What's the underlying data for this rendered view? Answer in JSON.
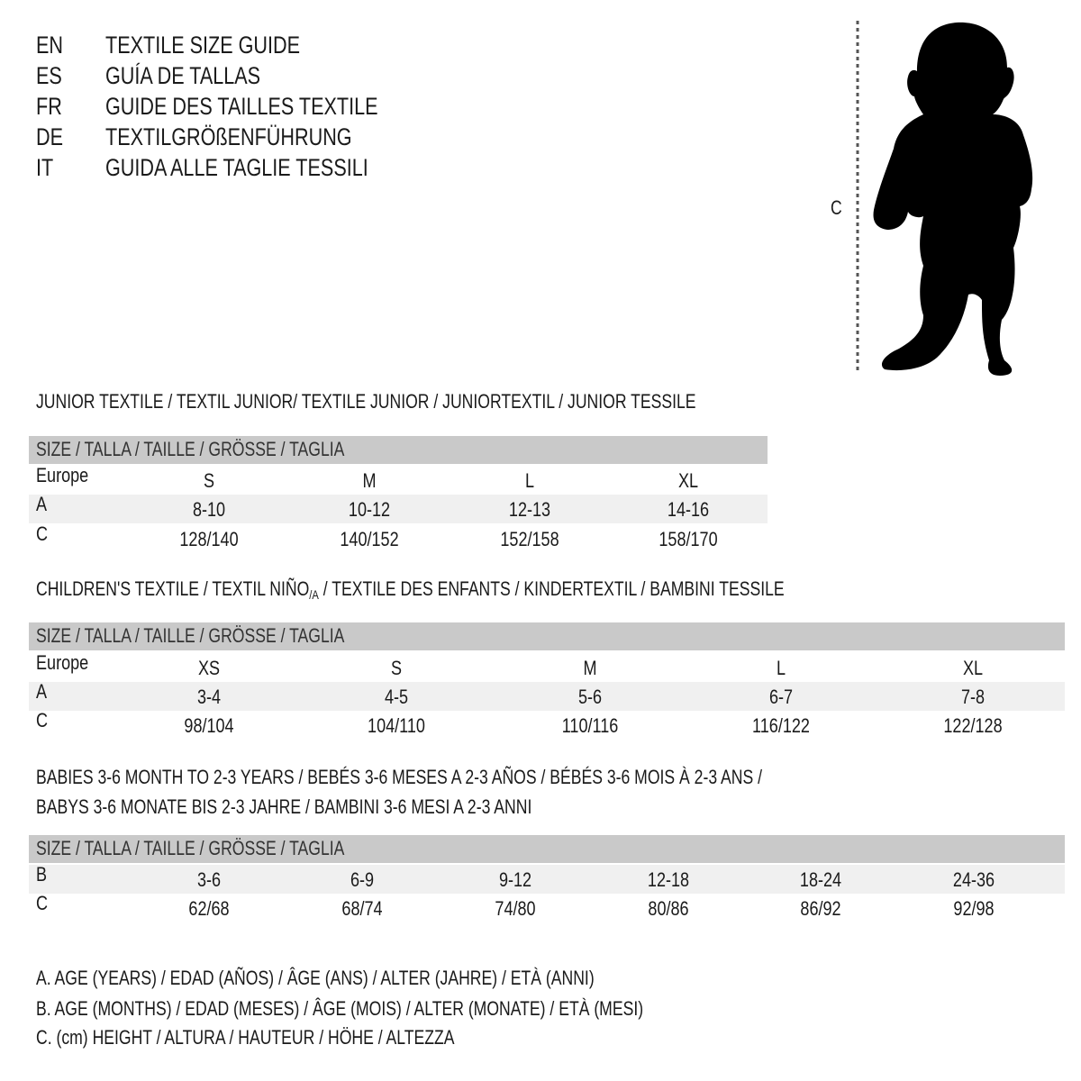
{
  "languages": [
    {
      "code": "EN",
      "title": "TEXTILE SIZE GUIDE"
    },
    {
      "code": "ES",
      "title": "GUÍA DE TALLAS"
    },
    {
      "code": "FR",
      "title": "GUIDE DES TAILLES TEXTILE"
    },
    {
      "code": "DE",
      "title": "TEXTILGRÖßENFÜHRUNG"
    },
    {
      "code": "IT",
      "title": "GUIDA ALLE TAGLIE TESSILI"
    }
  ],
  "figure": {
    "measure_label": "C",
    "icon": "child-silhouette"
  },
  "size_header": "SIZE / TALLA / TAILLE / GRÖSSE / TAGLIA",
  "colors": {
    "header_band": "#c9c9c9",
    "stripe": "#f0f0f0",
    "text": "#1a1a1a"
  },
  "junior": {
    "heading": "JUNIOR TEXTILE / TEXTIL JUNIOR/ TEXTILE JUNIOR / JUNIORTEXTIL / JUNIOR TESSILE",
    "rows": [
      {
        "label": "Europe",
        "values": [
          "S",
          "M",
          "L",
          "XL"
        ]
      },
      {
        "label": "A",
        "values": [
          "8-10",
          "10-12",
          "12-13",
          "14-16"
        ]
      },
      {
        "label": "C",
        "values": [
          "128/140",
          "140/152",
          "152/158",
          "158/170"
        ]
      }
    ]
  },
  "children": {
    "heading_pre": "CHILDREN'S TEXTILE / TEXTIL NIÑO",
    "heading_sub": "/A",
    "heading_post": " / TEXTILE DES ENFANTS / KINDERTEXTIL / BAMBINI TESSILE",
    "rows": [
      {
        "label": "Europe",
        "values": [
          "XS",
          "S",
          "M",
          "L",
          "XL"
        ]
      },
      {
        "label": "A",
        "values": [
          "3-4",
          "4-5",
          "5-6",
          "6-7",
          "7-8"
        ]
      },
      {
        "label": "C",
        "values": [
          "98/104",
          "104/110",
          "110/116",
          "116/122",
          "122/128"
        ]
      }
    ]
  },
  "babies": {
    "heading_line1": "BABIES 3-6 MONTH TO 2-3 YEARS / BEBÉS 3-6 MESES A 2-3 AÑOS / BÉBÉS 3-6 MOIS À 2-3 ANS /",
    "heading_line2": "BABYS 3-6 MONATE BIS 2-3 JAHRE / BAMBINI 3-6 MESI A 2-3 ANNI",
    "rows": [
      {
        "label": "B",
        "values": [
          "3-6",
          "6-9",
          "9-12",
          "12-18",
          "18-24",
          "24-36"
        ]
      },
      {
        "label": "C",
        "values": [
          "62/68",
          "68/74",
          "74/80",
          "80/86",
          "86/92",
          "92/98"
        ]
      }
    ]
  },
  "legend": [
    "A. AGE (YEARS) / EDAD (AÑOS) / ÂGE (ANS) / ALTER (JAHRE) / ETÀ (ANNI)",
    "B. AGE (MONTHS) / EDAD (MESES) / ÂGE (MOIS) / ALTER (MONATE) / ETÀ (MESI)",
    "C. (cm) HEIGHT / ALTURA / HAUTEUR / HÖHE / ALTEZZA"
  ]
}
